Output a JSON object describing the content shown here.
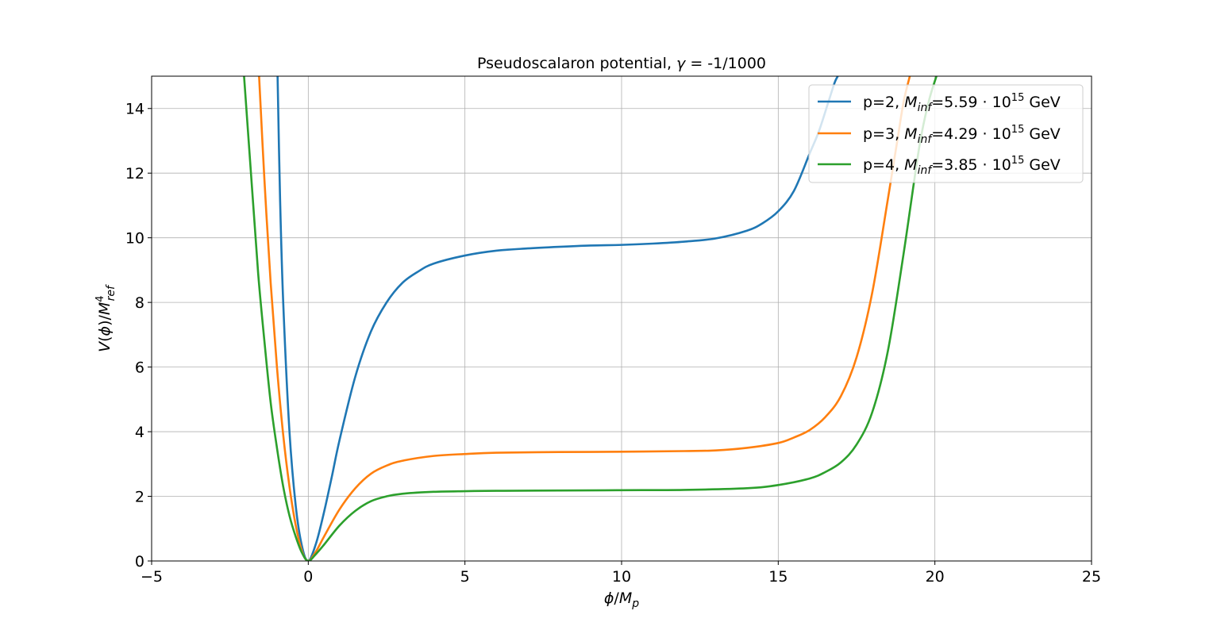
{
  "chart_data": {
    "type": "line",
    "title": "Pseudoscalaron potential, γ = -1/1000",
    "xlabel": "ϕ/M_p",
    "ylabel": "V(ϕ)/M⁴_ref",
    "xlim": [
      -5,
      25
    ],
    "ylim": [
      0,
      15
    ],
    "xticks": [
      "−5",
      "0",
      "5",
      "10",
      "15",
      "20",
      "25"
    ],
    "yticks": [
      "0",
      "2",
      "4",
      "6",
      "8",
      "10",
      "12",
      "14"
    ],
    "grid": true,
    "legend_position": "top-right",
    "series": [
      {
        "name": "p=2, M_inf=5.59·10^15 GeV",
        "color": "#1f77b4",
        "x": [
          -0.98,
          -0.9,
          -0.8,
          -0.6,
          -0.4,
          -0.2,
          0,
          0.25,
          0.5,
          0.75,
          1.0,
          1.5,
          2.0,
          2.5,
          3.0,
          3.5,
          4.0,
          5.0,
          6.0,
          7.0,
          8.0,
          9.0,
          10.0,
          11.0,
          12.0,
          13.0,
          14.0,
          14.5,
          15.0,
          15.5,
          16.0,
          16.3,
          16.6,
          16.8,
          16.9
        ],
        "y": [
          15.0,
          11.2,
          8.0,
          4.0,
          1.7,
          0.45,
          0.0,
          0.55,
          1.5,
          2.6,
          3.75,
          5.7,
          7.1,
          8.0,
          8.6,
          8.95,
          9.2,
          9.45,
          9.6,
          9.67,
          9.72,
          9.76,
          9.78,
          9.82,
          9.88,
          9.98,
          10.22,
          10.45,
          10.82,
          11.45,
          12.6,
          13.3,
          14.2,
          14.8,
          15.0
        ]
      },
      {
        "name": "p=3, M_inf=4.29·10^15 GeV",
        "color": "#ff7f0e",
        "x": [
          -1.57,
          -1.4,
          -1.2,
          -1.0,
          -0.8,
          -0.6,
          -0.4,
          -0.2,
          0,
          0.25,
          0.5,
          1.0,
          1.5,
          2.0,
          2.5,
          3.0,
          4.0,
          5.0,
          6.0,
          8.0,
          10.0,
          12.0,
          13.0,
          14.0,
          15.0,
          15.5,
          16.0,
          16.5,
          17.0,
          17.5,
          18.0,
          18.5,
          18.8,
          19.0,
          19.2
        ],
        "y": [
          15.0,
          11.8,
          8.6,
          6.0,
          3.9,
          2.3,
          1.1,
          0.3,
          0.0,
          0.3,
          0.75,
          1.6,
          2.25,
          2.7,
          2.95,
          3.1,
          3.25,
          3.31,
          3.35,
          3.37,
          3.38,
          3.4,
          3.42,
          3.5,
          3.65,
          3.82,
          4.05,
          4.45,
          5.1,
          6.3,
          8.3,
          11.2,
          13.0,
          14.2,
          15.0
        ]
      },
      {
        "name": "p=4, M_inf=3.85·10^15 GeV",
        "color": "#2ca02c",
        "x": [
          -2.05,
          -1.8,
          -1.6,
          -1.4,
          -1.2,
          -1.0,
          -0.8,
          -0.6,
          -0.4,
          -0.2,
          0,
          0.25,
          0.5,
          1.0,
          1.5,
          2.0,
          2.5,
          3.0,
          4.0,
          5.0,
          6.0,
          8.0,
          10.0,
          12.0,
          14.0,
          15.0,
          16.0,
          16.5,
          17.0,
          17.5,
          18.0,
          18.5,
          19.0,
          19.5,
          19.8,
          20.05
        ],
        "y": [
          15.0,
          11.6,
          8.9,
          6.8,
          4.9,
          3.5,
          2.3,
          1.4,
          0.75,
          0.25,
          0.0,
          0.22,
          0.5,
          1.1,
          1.55,
          1.85,
          2.0,
          2.08,
          2.14,
          2.16,
          2.17,
          2.18,
          2.19,
          2.2,
          2.25,
          2.35,
          2.55,
          2.75,
          3.05,
          3.6,
          4.6,
          6.5,
          9.5,
          12.8,
          14.2,
          15.0
        ]
      }
    ]
  }
}
